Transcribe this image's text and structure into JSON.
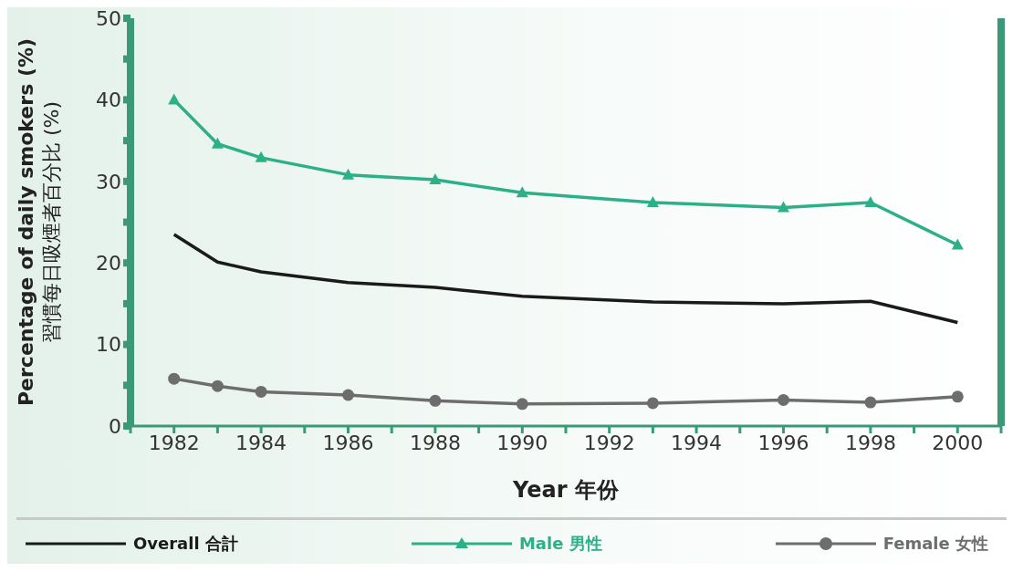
{
  "chart_data": {
    "type": "line",
    "ylabel": "Percentage of daily smokers (%)\n習慣每日吸煙者百分比 (%)",
    "xlabel": "Year 年份",
    "x": [
      1982,
      1983,
      1984,
      1986,
      1988,
      1990,
      1993,
      1996,
      1998,
      2000
    ],
    "series": [
      {
        "name": "Overall 合計",
        "color": "#1a1a1a",
        "marker": "none",
        "values": [
          23.5,
          20.1,
          18.9,
          17.6,
          17.0,
          15.9,
          15.2,
          15.0,
          15.3,
          12.7
        ]
      },
      {
        "name": "Male 男性",
        "color": "#2bb088",
        "marker": "triangle",
        "values": [
          40.0,
          34.6,
          32.9,
          30.8,
          30.2,
          28.6,
          27.4,
          26.8,
          27.4,
          22.2
        ]
      },
      {
        "name": "Female 女性",
        "color": "#6d6d6d",
        "marker": "circle",
        "values": [
          5.8,
          4.9,
          4.2,
          3.8,
          3.1,
          2.7,
          2.8,
          3.2,
          2.9,
          3.6
        ]
      }
    ],
    "xlim": [
      1981,
      2001
    ],
    "xticks": [
      {
        "value": 1981,
        "label": null
      },
      1982,
      {
        "value": 1983,
        "label": null
      },
      1984,
      {
        "value": 1985,
        "label": null
      },
      1986,
      {
        "value": 1987,
        "label": null
      },
      1988,
      {
        "value": 1989,
        "label": null
      },
      1990,
      {
        "value": 1991,
        "label": null
      },
      1992,
      {
        "value": 1993,
        "label": null
      },
      1994,
      {
        "value": 1995,
        "label": null
      },
      1996,
      {
        "value": 1997,
        "label": null
      },
      1998,
      {
        "value": 1999,
        "label": null
      },
      2000,
      {
        "value": 2001,
        "label": null
      }
    ],
    "ylim": [
      0,
      50
    ],
    "yticks": [
      0,
      {
        "value": 5,
        "label": null
      },
      10,
      {
        "value": 15,
        "label": null
      },
      20,
      {
        "value": 25,
        "label": null
      },
      30,
      {
        "value": 35,
        "label": null
      },
      40,
      {
        "value": 45,
        "label": null
      },
      50
    ],
    "grid": false,
    "legend": "bottom",
    "line_style": "solid"
  }
}
